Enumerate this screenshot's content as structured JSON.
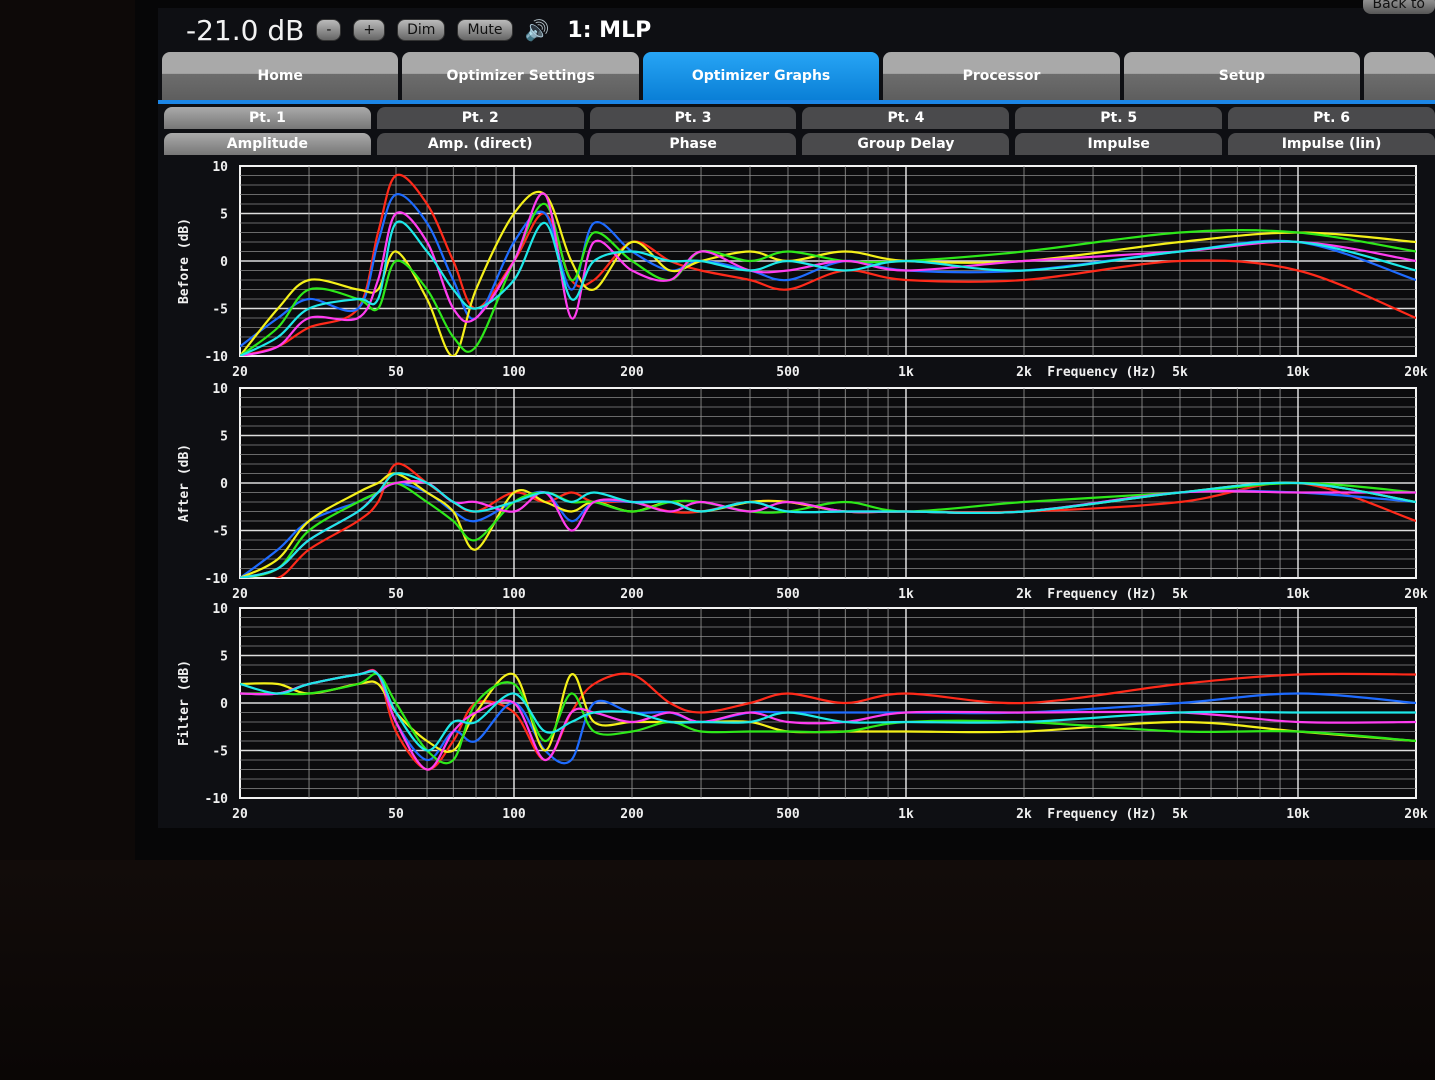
{
  "topbar": {
    "volume": "-21.0 dB",
    "minus": "-",
    "plus": "+",
    "dim": "Dim",
    "mute": "Mute",
    "speaker_icon": "speaker-icon",
    "position": "1: MLP",
    "back": "Back to"
  },
  "tabs": [
    {
      "label": "Home"
    },
    {
      "label": "Optimizer Settings"
    },
    {
      "label": "Optimizer Graphs",
      "active": true
    },
    {
      "label": "Processor"
    },
    {
      "label": "Setup"
    },
    {
      "label": ""
    }
  ],
  "points": [
    "Pt. 1",
    "Pt. 2",
    "Pt. 3",
    "Pt. 4",
    "Pt. 5",
    "Pt. 6"
  ],
  "graph_types": [
    "Amplitude",
    "Amp. (direct)",
    "Phase",
    "Group Delay",
    "Impulse",
    "Impulse (lin)"
  ],
  "colors": {
    "accent": "#1c86e6",
    "series": [
      "#ff2a1a",
      "#1e6bff",
      "#f4f01a",
      "#2ee81a",
      "#ff3df0",
      "#1ee8e8"
    ]
  },
  "chart_data": [
    {
      "type": "line",
      "ylabel": "Before (dB)",
      "xlabel": "Frequency (Hz)",
      "xscale": "log",
      "xlim": [
        20,
        20000
      ],
      "ylim": [
        -10,
        10
      ],
      "xticks": [
        "20",
        "50",
        "100",
        "200",
        "500",
        "1k",
        "2k",
        "5k",
        "10k",
        "20k"
      ],
      "yticks": [
        "10",
        "5",
        "0",
        "-5",
        "-10"
      ],
      "grid": true,
      "x": [
        20,
        25,
        30,
        40,
        45,
        50,
        60,
        70,
        80,
        100,
        120,
        140,
        160,
        200,
        250,
        300,
        400,
        500,
        700,
        1000,
        2000,
        5000,
        10000,
        20000
      ],
      "series": [
        {
          "values": [
            -10,
            -9,
            -7,
            -5,
            3,
            9,
            6,
            0,
            -5,
            0,
            5,
            -2,
            -2,
            2,
            0,
            -1,
            -2,
            -3,
            -1,
            -2,
            -2,
            0,
            -1,
            -6
          ]
        },
        {
          "values": [
            -9,
            -6,
            -4,
            -5,
            2,
            7,
            4,
            -2,
            -6,
            2,
            5,
            -3,
            4,
            1,
            -1,
            0,
            -1,
            -2,
            0,
            -1,
            -1,
            1,
            2,
            -2
          ]
        },
        {
          "values": [
            -10,
            -5,
            -2,
            -3,
            -3,
            1,
            -4,
            -10,
            -3,
            5,
            7,
            0,
            -3,
            2,
            -1,
            0,
            1,
            0,
            1,
            0,
            0,
            2,
            3,
            2
          ]
        },
        {
          "values": [
            -10,
            -7,
            -3,
            -4,
            -5,
            0,
            -3,
            -8,
            -9,
            0,
            6,
            -2,
            3,
            0,
            -2,
            1,
            0,
            1,
            0,
            0,
            1,
            3,
            3,
            1
          ]
        },
        {
          "values": [
            -10,
            -9,
            -6,
            -6,
            -2,
            5,
            2,
            -5,
            -6,
            0,
            7,
            -6,
            2,
            -1,
            -2,
            1,
            -1,
            -1,
            0,
            -1,
            0,
            1,
            2,
            0
          ]
        },
        {
          "values": [
            -10,
            -8,
            -5,
            -4,
            -4,
            4,
            1,
            -3,
            -5,
            -2,
            4,
            -4,
            0,
            1,
            0,
            0,
            -1,
            0,
            -1,
            0,
            -1,
            1,
            2,
            -1
          ]
        }
      ]
    },
    {
      "type": "line",
      "ylabel": "After (dB)",
      "xlabel": "Frequency (Hz)",
      "xscale": "log",
      "xlim": [
        20,
        20000
      ],
      "ylim": [
        -10,
        10
      ],
      "xticks": [
        "20",
        "50",
        "100",
        "200",
        "500",
        "1k",
        "2k",
        "5k",
        "10k",
        "20k"
      ],
      "yticks": [
        "10",
        "5",
        "0",
        "-5",
        "-10"
      ],
      "grid": true,
      "x": [
        20,
        25,
        30,
        40,
        45,
        50,
        60,
        70,
        80,
        100,
        120,
        140,
        160,
        200,
        250,
        300,
        400,
        500,
        700,
        1000,
        2000,
        5000,
        10000,
        20000
      ],
      "series": [
        {
          "values": [
            -10,
            -10,
            -7,
            -4,
            -2,
            2,
            0,
            -2,
            -3,
            -1,
            -2,
            -1,
            -2,
            -2,
            -3,
            -3,
            -2,
            -2,
            -3,
            -3,
            -3,
            -2,
            0,
            -4
          ]
        },
        {
          "values": [
            -10,
            -7,
            -4,
            -2,
            -1,
            0,
            -1,
            -3,
            -4,
            -2,
            -1,
            -4,
            -2,
            -2,
            -2,
            -3,
            -2,
            -3,
            -3,
            -3,
            -3,
            -1,
            -1,
            -2
          ]
        },
        {
          "values": [
            -10,
            -8,
            -4,
            -1,
            0,
            1,
            -1,
            -3,
            -7,
            -1,
            -2,
            -3,
            -2,
            -3,
            -2,
            -3,
            -2,
            -2,
            -3,
            -3,
            -3,
            -1,
            0,
            -2
          ]
        },
        {
          "values": [
            -10,
            -9,
            -5,
            -2,
            -1,
            0,
            -2,
            -4,
            -6,
            -2,
            -1,
            -2,
            -2,
            -3,
            -2,
            -2,
            -3,
            -3,
            -2,
            -3,
            -2,
            -1,
            0,
            -1
          ]
        },
        {
          "values": [
            -10,
            -9,
            -6,
            -3,
            -1,
            0,
            0,
            -2,
            -2,
            -3,
            -1,
            -5,
            -2,
            -2,
            -3,
            -2,
            -3,
            -2,
            -3,
            -3,
            -3,
            -1,
            -1,
            -1
          ]
        },
        {
          "values": [
            -10,
            -9,
            -6,
            -3,
            -1,
            1,
            0,
            -2,
            -3,
            -2,
            -1,
            -2,
            -1,
            -2,
            -2,
            -3,
            -2,
            -3,
            -3,
            -3,
            -3,
            -1,
            0,
            -2
          ]
        }
      ]
    },
    {
      "type": "line",
      "ylabel": "Filter (dB)",
      "xlabel": "Frequency (Hz)",
      "xscale": "log",
      "xlim": [
        20,
        20000
      ],
      "ylim": [
        -10,
        10
      ],
      "xticks": [
        "20",
        "50",
        "100",
        "200",
        "500",
        "1k",
        "2k",
        "5k",
        "10k",
        "20k"
      ],
      "yticks": [
        "10",
        "5",
        "0",
        "-5",
        "-10"
      ],
      "grid": true,
      "x": [
        20,
        25,
        30,
        40,
        45,
        50,
        60,
        70,
        80,
        100,
        120,
        140,
        160,
        200,
        250,
        300,
        400,
        500,
        700,
        1000,
        2000,
        5000,
        10000,
        20000
      ],
      "series": [
        {
          "values": [
            1,
            1,
            2,
            3,
            3,
            -3,
            -7,
            -4,
            0,
            -1,
            -6,
            -1,
            2,
            3,
            0,
            -1,
            0,
            1,
            0,
            1,
            0,
            2,
            3,
            3
          ]
        },
        {
          "values": [
            1,
            1,
            2,
            3,
            3,
            -2,
            -6,
            -3,
            -4,
            0,
            -5,
            -6,
            0,
            -1,
            -1,
            -2,
            -1,
            -1,
            -1,
            -1,
            -1,
            0,
            1,
            0
          ]
        },
        {
          "values": [
            2,
            2,
            1,
            2,
            2,
            -1,
            -4,
            -5,
            -1,
            3,
            -5,
            3,
            -2,
            -2,
            -2,
            -2,
            -2,
            -3,
            -3,
            -3,
            -3,
            -2,
            -3,
            -4
          ]
        },
        {
          "values": [
            1,
            1,
            1,
            2,
            3,
            0,
            -5,
            -6,
            0,
            2,
            -4,
            1,
            -3,
            -3,
            -2,
            -3,
            -3,
            -3,
            -3,
            -2,
            -2,
            -3,
            -3,
            -4
          ]
        },
        {
          "values": [
            1,
            1,
            2,
            3,
            3,
            -2,
            -7,
            -3,
            -1,
            0,
            -6,
            -1,
            -1,
            -2,
            -1,
            -2,
            -1,
            -2,
            -2,
            -1,
            -1,
            -1,
            -2,
            -2
          ]
        },
        {
          "values": [
            2,
            1,
            2,
            3,
            3,
            -1,
            -5,
            -2,
            -2,
            1,
            -3,
            -2,
            -1,
            -1,
            -2,
            -2,
            -2,
            -1,
            -2,
            -2,
            -2,
            -1,
            -1,
            -1
          ]
        }
      ]
    }
  ]
}
